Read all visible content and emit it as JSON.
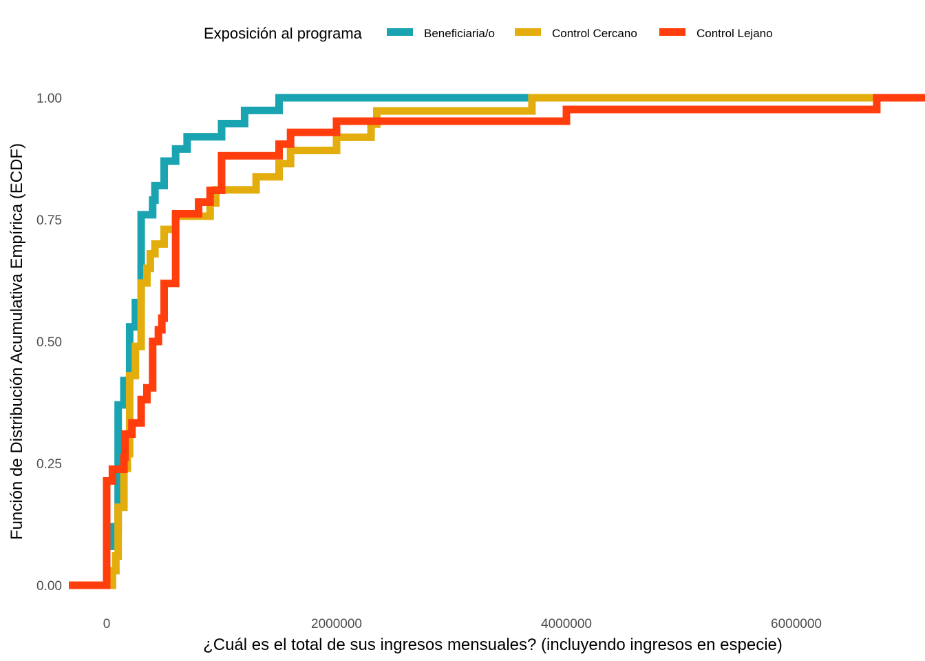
{
  "chart_data": {
    "type": "line",
    "subtype": "ecdf-step",
    "xlabel": "¿Cuál es el total de sus ingresos mensuales? (incluyendo ingresos en especie)",
    "ylabel": "Función de Distribución Acumulativa Empírica (ECDF)",
    "xlim": [
      -320000,
      7000000
    ],
    "ylim": [
      -0.05,
      1.08
    ],
    "x_ticks": [
      0,
      2000000,
      4000000,
      6000000
    ],
    "x_tick_labels": [
      "0",
      "2000000",
      "4000000",
      "6000000"
    ],
    "y_ticks": [
      0,
      0.25,
      0.5,
      0.75,
      1.0
    ],
    "y_tick_labels": [
      "0.00",
      "0.25",
      "0.50",
      "0.75",
      "1.00"
    ],
    "grid": false,
    "legend": {
      "title": "Exposición al programa",
      "position": "top"
    },
    "series": [
      {
        "name": "Beneficiaria/o",
        "color": "#1AA3B0",
        "points": [
          [
            0,
            0.08
          ],
          [
            50000,
            0.12
          ],
          [
            100000,
            0.37
          ],
          [
            150000,
            0.42
          ],
          [
            200000,
            0.53
          ],
          [
            250000,
            0.58
          ],
          [
            300000,
            0.76
          ],
          [
            400000,
            0.79
          ],
          [
            420000,
            0.82
          ],
          [
            500000,
            0.87
          ],
          [
            600000,
            0.895
          ],
          [
            700000,
            0.92
          ],
          [
            1000000,
            0.947
          ],
          [
            1200000,
            0.974
          ],
          [
            1500000,
            1.0
          ]
        ]
      },
      {
        "name": "Control Cercano",
        "color": "#E3AE0D",
        "points": [
          [
            50000,
            0.03
          ],
          [
            80000,
            0.06
          ],
          [
            100000,
            0.16
          ],
          [
            150000,
            0.24
          ],
          [
            180000,
            0.27
          ],
          [
            200000,
            0.43
          ],
          [
            250000,
            0.49
          ],
          [
            300000,
            0.62
          ],
          [
            350000,
            0.65
          ],
          [
            380000,
            0.68
          ],
          [
            420000,
            0.7
          ],
          [
            500000,
            0.73
          ],
          [
            600000,
            0.757
          ],
          [
            900000,
            0.784
          ],
          [
            950000,
            0.811
          ],
          [
            1300000,
            0.838
          ],
          [
            1500000,
            0.865
          ],
          [
            1600000,
            0.892
          ],
          [
            2000000,
            0.919
          ],
          [
            2300000,
            0.946
          ],
          [
            2350000,
            0.973
          ],
          [
            3700000,
            1.0
          ]
        ]
      },
      {
        "name": "Control Lejano",
        "color": "#FF3D0D",
        "points": [
          [
            0,
            0.214
          ],
          [
            50000,
            0.238
          ],
          [
            150000,
            0.262
          ],
          [
            160000,
            0.31
          ],
          [
            220000,
            0.333
          ],
          [
            300000,
            0.381
          ],
          [
            350000,
            0.405
          ],
          [
            400000,
            0.5
          ],
          [
            450000,
            0.524
          ],
          [
            480000,
            0.548
          ],
          [
            500000,
            0.619
          ],
          [
            600000,
            0.762
          ],
          [
            800000,
            0.786
          ],
          [
            900000,
            0.81
          ],
          [
            1000000,
            0.881
          ],
          [
            1500000,
            0.905
          ],
          [
            1600000,
            0.929
          ],
          [
            2000000,
            0.952
          ],
          [
            4000000,
            0.976
          ],
          [
            6700000,
            1.0
          ]
        ]
      }
    ]
  }
}
